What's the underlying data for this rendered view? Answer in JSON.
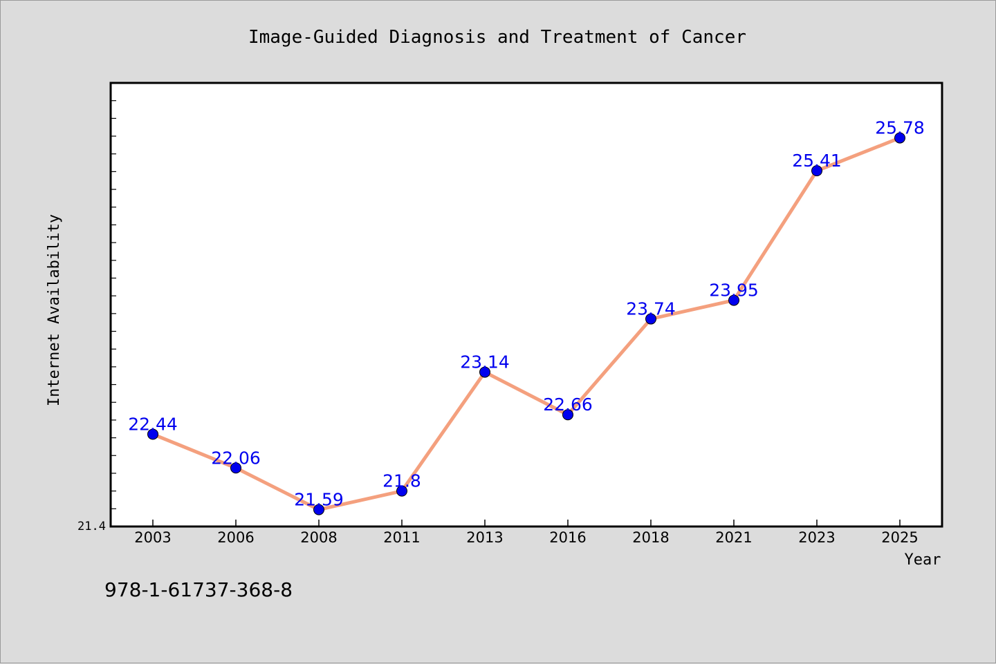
{
  "chart_data": {
    "type": "line",
    "title": "Image-Guided Diagnosis and Treatment of Cancer",
    "xlabel": "Year",
    "ylabel": "Internet Availability",
    "categories": [
      "2003",
      "2006",
      "2008",
      "2011",
      "2013",
      "2016",
      "2018",
      "2021",
      "2023",
      "2025"
    ],
    "series": [
      {
        "values": [
          22.44,
          22.06,
          21.59,
          21.8,
          23.14,
          22.66,
          23.74,
          23.95,
          25.41,
          25.78
        ],
        "data_labels": [
          "22.44",
          "22.06",
          "21.59",
          "21.8",
          "23.14",
          "22.66",
          "23.74",
          "23.95",
          "25.41",
          "25.78"
        ],
        "line_color": "#f4a07e",
        "marker_color": "#0000ee"
      }
    ],
    "ylim": [
      21.4,
      26.4
    ],
    "ytick_labels": [
      "21.4"
    ],
    "grid": false,
    "legend": "none",
    "label_color": "#0000ee"
  },
  "footer": {
    "isbn": "978-1-61737-368-8"
  }
}
